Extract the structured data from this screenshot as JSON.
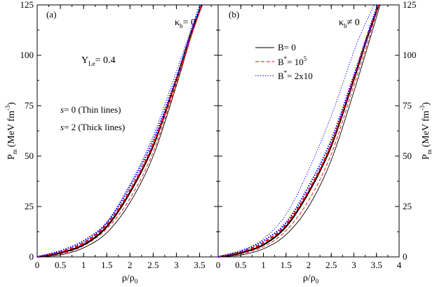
{
  "chart_data": [
    {
      "type": "line",
      "panel_label": "(a)",
      "kappa_text": {
        "sym": "κ",
        "sub": "b",
        "rest": "= 0"
      },
      "ylabel": {
        "main": "P",
        "sub": "m",
        "unit": "(MeV fm",
        "sup": "-3",
        "close": ")"
      },
      "xlabel": {
        "rho": "ρ/ρ",
        "sub": "0"
      },
      "xlim": [
        0,
        3.9
      ],
      "ylim": [
        0,
        125
      ],
      "xticks": [
        0,
        0.5,
        1,
        1.5,
        2,
        2.5,
        3,
        3.5
      ],
      "xtick_labels": [
        "0",
        "0.5",
        "1",
        "1.5",
        "2",
        "2.5",
        "3",
        "3.5"
      ],
      "yticks": [
        0,
        25,
        50,
        75,
        100,
        125
      ],
      "ytick_labels": [
        "0",
        "25",
        "50",
        "75",
        "100",
        "125"
      ],
      "annotations": {
        "yle": {
          "main": "Y",
          "sub": "Le",
          "rest": "= 0.4"
        },
        "thin": {
          "s": "s",
          "rest": "= 0 (Thin lines)"
        },
        "thick": {
          "s": "s",
          "rest": "= 2 (Thick lines)"
        }
      },
      "series": [
        {
          "name": "B=0, s=0",
          "color": "#000000",
          "dash": "solid",
          "width": 0.9,
          "x": [
            0,
            0.5,
            1,
            1.5,
            2,
            2.5,
            3,
            3.3,
            3.55
          ],
          "y": [
            0,
            1,
            4.5,
            12,
            27,
            50,
            85,
            108,
            125
          ]
        },
        {
          "name": "B*=1e5, s=0",
          "color": "#ff0000",
          "dash": "dashed",
          "width": 0.9,
          "x": [
            0,
            0.5,
            1,
            1.5,
            2,
            2.5,
            3,
            3.3,
            3.54
          ],
          "y": [
            0,
            1.5,
            5.5,
            14,
            29,
            52,
            86,
            108,
            125
          ]
        },
        {
          "name": "B*=2x10, s=0",
          "color": "#0000ff",
          "dash": "dotted",
          "width": 0.9,
          "x": [
            0,
            0.5,
            1,
            1.5,
            2,
            2.5,
            3,
            3.3,
            3.5
          ],
          "y": [
            0,
            2,
            7,
            17,
            36,
            60,
            92,
            112,
            125
          ]
        },
        {
          "name": "B=0, s=2",
          "color": "#000000",
          "dash": "solid",
          "width": 2.2,
          "x": [
            0,
            0.5,
            1,
            1.5,
            2,
            2.5,
            3,
            3.3,
            3.55
          ],
          "y": [
            0,
            2,
            6,
            15,
            32,
            55,
            88,
            110,
            125
          ]
        },
        {
          "name": "B*=1e5, s=2",
          "color": "#ff0000",
          "dash": "dashed",
          "width": 2.2,
          "x": [
            0,
            0.5,
            1,
            1.5,
            2,
            2.5,
            3,
            3.3,
            3.55
          ],
          "y": [
            0,
            2.5,
            7,
            16,
            33,
            56,
            88,
            109,
            125
          ]
        },
        {
          "name": "B*=2x10, s=2",
          "color": "#0000ff",
          "dash": "dotted",
          "width": 2.2,
          "x": [
            0,
            0.5,
            1,
            1.5,
            2,
            2.5,
            3,
            3.3,
            3.52
          ],
          "y": [
            0,
            3,
            8,
            17,
            35,
            58,
            89,
            110,
            125
          ]
        }
      ]
    },
    {
      "type": "line",
      "panel_label": "(b)",
      "kappa_text": {
        "sym": "κ",
        "sub": "b",
        "rest": "≠ 0"
      },
      "ylabel": {
        "main": "P",
        "sub": "m",
        "unit": "(MeV fm",
        "sup": "-3",
        "close": ")"
      },
      "xlabel": {
        "rho": "ρ/ρ",
        "sub": "0"
      },
      "xlim": [
        0,
        4
      ],
      "ylim": [
        0,
        125
      ],
      "xticks": [
        0,
        0.5,
        1,
        1.5,
        2,
        2.5,
        3,
        3.5,
        4
      ],
      "xtick_labels": [
        "0",
        "0.5",
        "1",
        "1.5",
        "2",
        "2.5",
        "3",
        "3.5",
        "4"
      ],
      "yticks": [
        0,
        25,
        50,
        75,
        100,
        125
      ],
      "ytick_labels": [
        "0",
        "25",
        "50",
        "75",
        "100",
        "125"
      ],
      "legend": [
        {
          "label_main": "B",
          "label_sup": "",
          "label_rest": "= 0",
          "color": "#000000",
          "dash": "solid"
        },
        {
          "label_main": "B",
          "label_sup": "*",
          "label_rest": "= 10",
          "label_pow": "5",
          "color": "#ff0000",
          "dash": "dashed"
        },
        {
          "label_main": "B",
          "label_sup": "*",
          "label_rest": "= 2x10",
          "label_pow": "",
          "color": "#0000ff",
          "dash": "dotted"
        }
      ],
      "series": [
        {
          "name": "B=0, s=0",
          "color": "#000000",
          "dash": "solid",
          "width": 0.9,
          "x": [
            0,
            0.5,
            1,
            1.5,
            2,
            2.5,
            3,
            3.3,
            3.58
          ],
          "y": [
            0,
            1,
            4,
            11,
            25,
            48,
            82,
            104,
            125
          ]
        },
        {
          "name": "B*=1e5, s=0",
          "color": "#ff0000",
          "dash": "dashed",
          "width": 0.9,
          "x": [
            0,
            0.5,
            1,
            1.5,
            2,
            2.5,
            3,
            3.3,
            3.55
          ],
          "y": [
            0,
            1.5,
            5,
            13,
            28,
            51,
            85,
            106,
            125
          ]
        },
        {
          "name": "B*=2x10, s=0",
          "color": "#0000ff",
          "dash": "dotted",
          "width": 0.9,
          "x": [
            0,
            0.5,
            1,
            1.5,
            2,
            2.5,
            3,
            3.2,
            3.45
          ],
          "y": [
            0,
            2.5,
            9,
            21,
            43,
            70,
            102,
            113,
            125
          ]
        },
        {
          "name": "B=0, s=2",
          "color": "#000000",
          "dash": "solid",
          "width": 2.2,
          "x": [
            0,
            0.5,
            1,
            1.5,
            2,
            2.5,
            3,
            3.3,
            3.55
          ],
          "y": [
            0,
            2,
            6,
            15,
            32,
            55,
            88,
            109,
            125
          ]
        },
        {
          "name": "B*=1e5, s=2",
          "color": "#ff0000",
          "dash": "dashed",
          "width": 2.2,
          "x": [
            0,
            0.5,
            1,
            1.5,
            2,
            2.5,
            3,
            3.3,
            3.55
          ],
          "y": [
            0,
            2.5,
            7,
            16,
            33,
            56,
            89,
            110,
            125
          ]
        },
        {
          "name": "B*=2x10, s=2",
          "color": "#0000ff",
          "dash": "dotted",
          "width": 2.2,
          "x": [
            0,
            0.5,
            1,
            1.5,
            2,
            2.5,
            3,
            3.3,
            3.52
          ],
          "y": [
            0,
            3,
            8,
            17,
            35,
            58,
            90,
            110,
            125
          ]
        }
      ]
    }
  ]
}
